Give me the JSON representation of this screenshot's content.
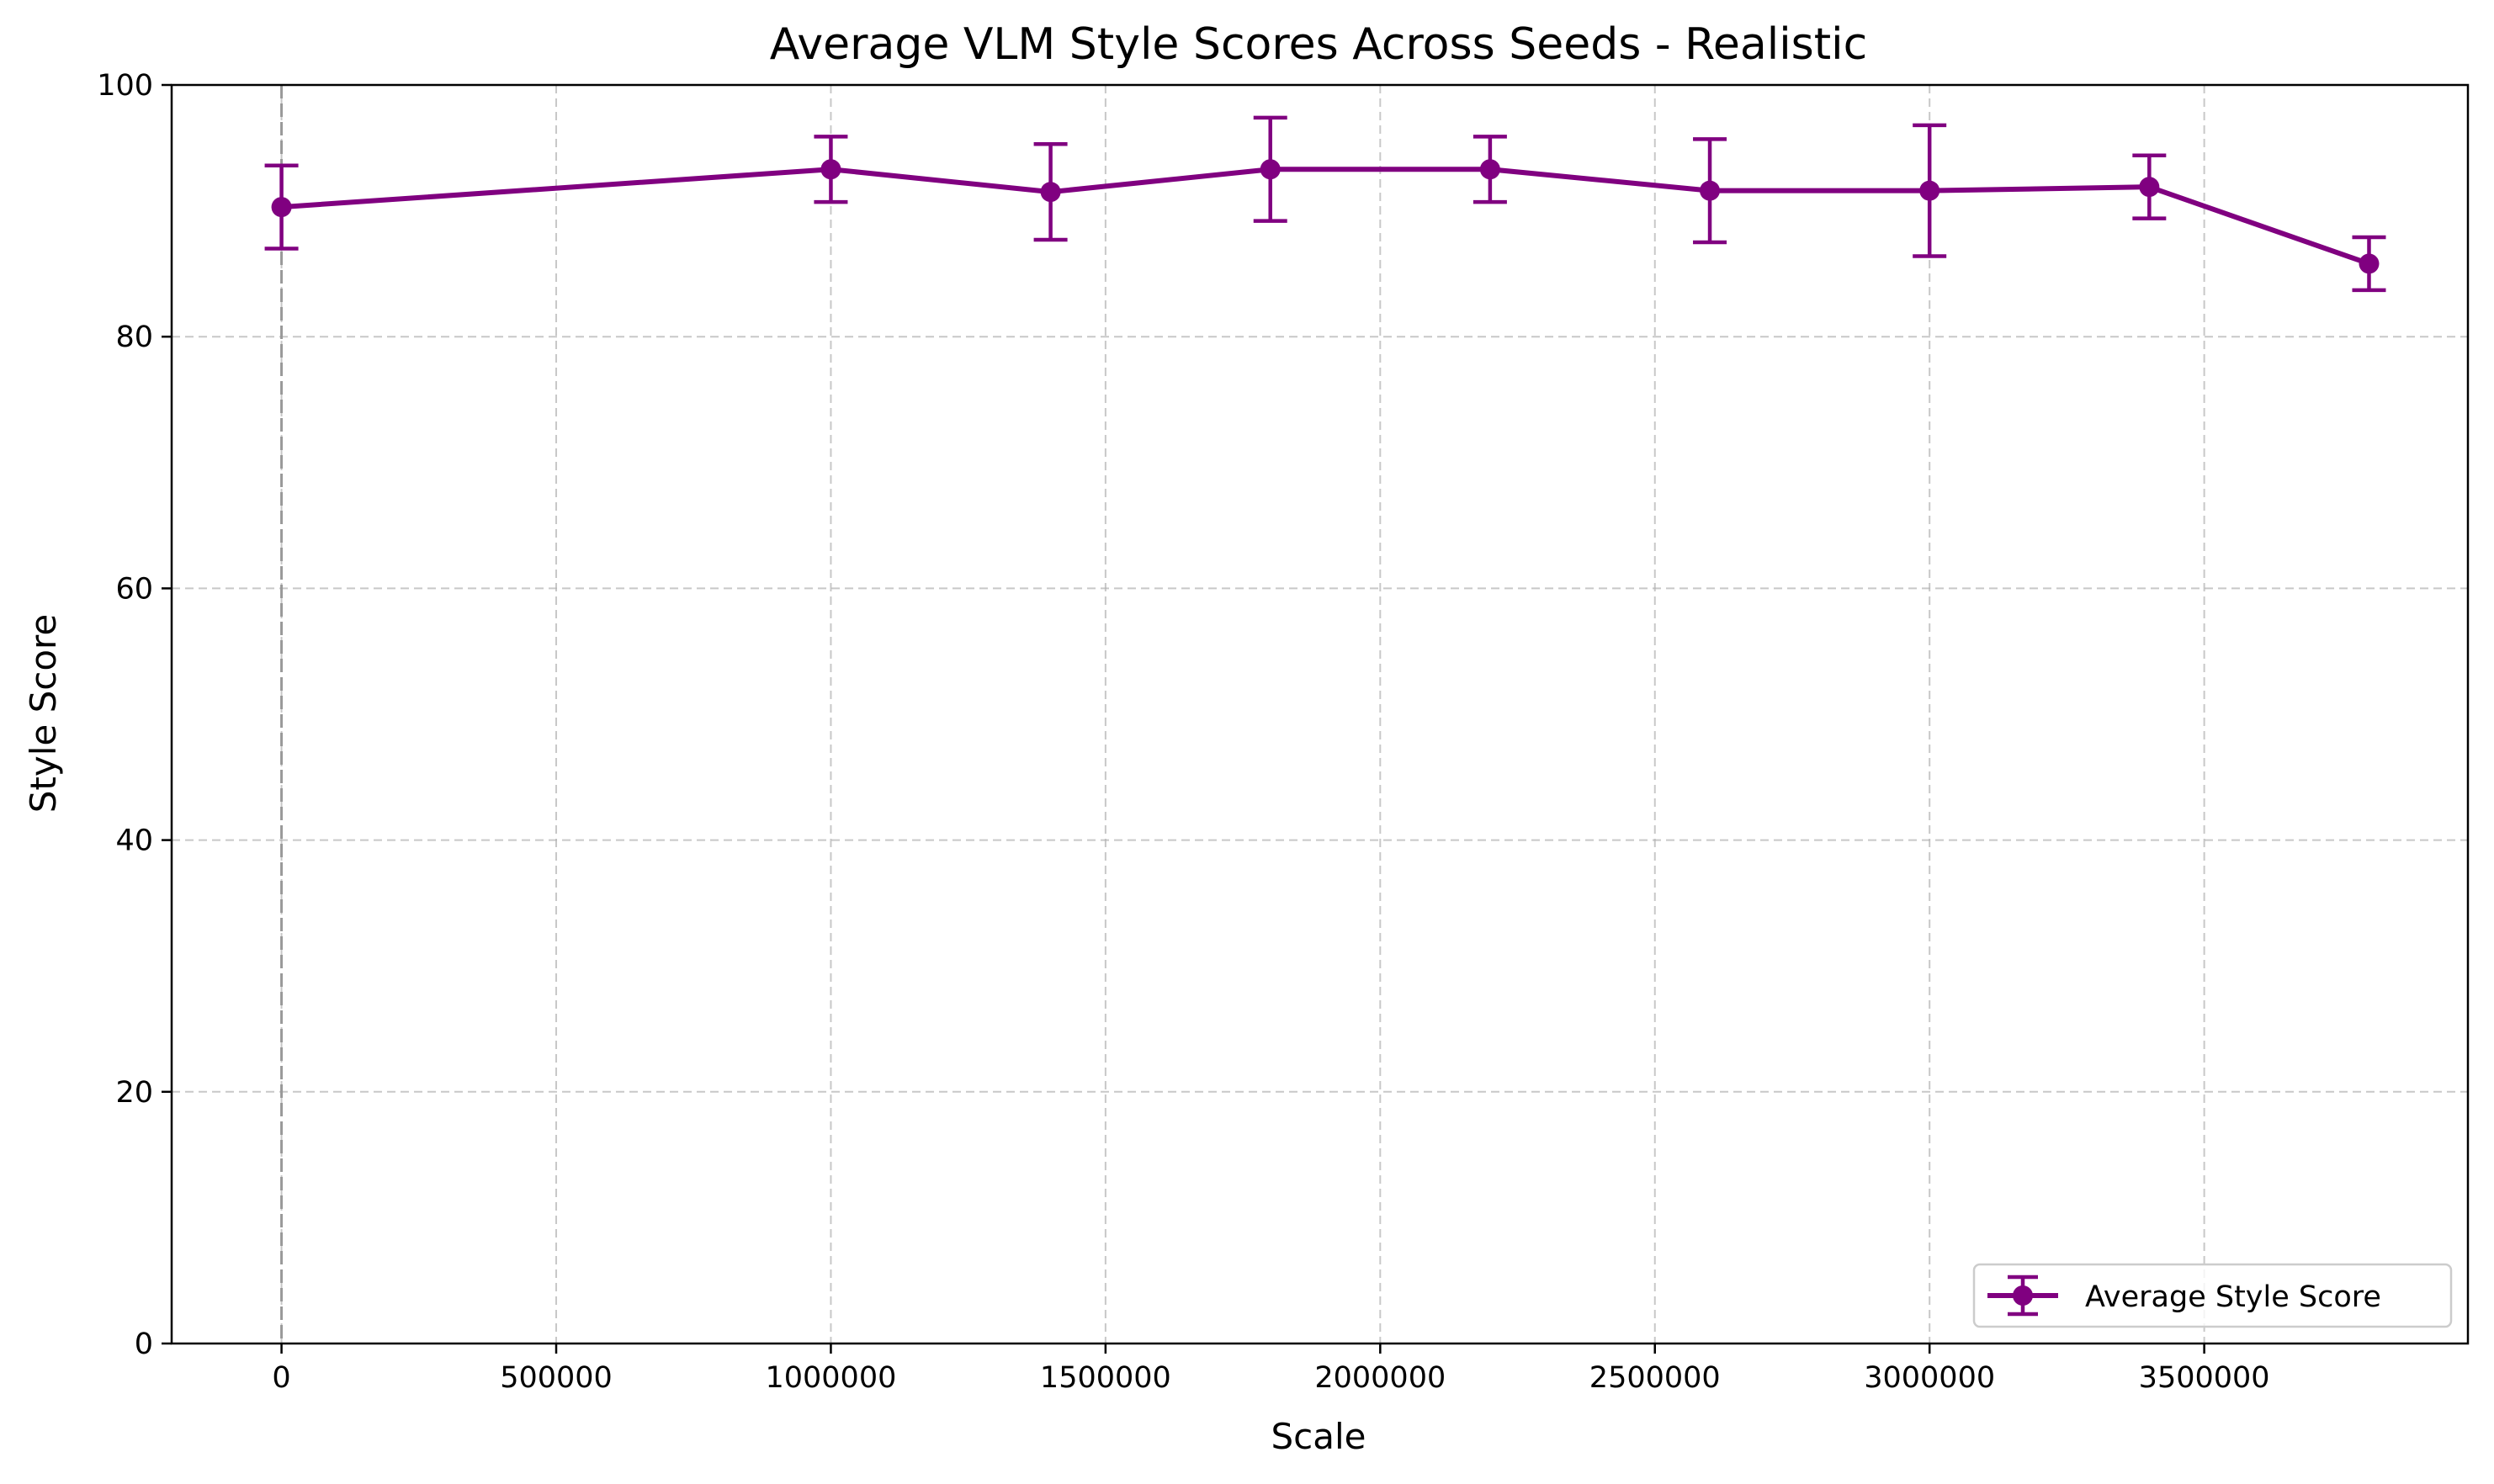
{
  "chart_data": {
    "type": "line",
    "title": "Average VLM Style Scores Across Seeds - Realistic",
    "xlabel": "Scale",
    "ylabel": "Style Score",
    "xlim": [
      -200000,
      3980000
    ],
    "ylim": [
      0,
      100
    ],
    "x_ticks": [
      0,
      500000,
      1000000,
      1500000,
      2000000,
      2500000,
      3000000,
      3500000
    ],
    "x_tick_labels": [
      "0",
      "500000",
      "1000000",
      "1500000",
      "2000000",
      "2500000",
      "3000000",
      "3500000"
    ],
    "y_ticks": [
      0,
      20,
      40,
      60,
      80,
      100
    ],
    "y_tick_labels": [
      "0",
      "20",
      "40",
      "60",
      "80",
      "100"
    ],
    "grid": true,
    "legend_position": "lower-right",
    "reference_line_x": 0,
    "series": [
      {
        "name": "Average Style Score",
        "color": "#800080",
        "marker": "circle",
        "x": [
          0,
          1000000,
          1400000,
          1800000,
          2200000,
          2600000,
          3000000,
          3400000,
          3800000
        ],
        "y": [
          90.3,
          93.3,
          91.5,
          93.3,
          93.3,
          91.6,
          91.6,
          91.9,
          85.8
        ],
        "error": [
          3.3,
          2.6,
          3.8,
          4.1,
          2.6,
          4.1,
          5.2,
          2.5,
          2.1
        ]
      }
    ]
  }
}
